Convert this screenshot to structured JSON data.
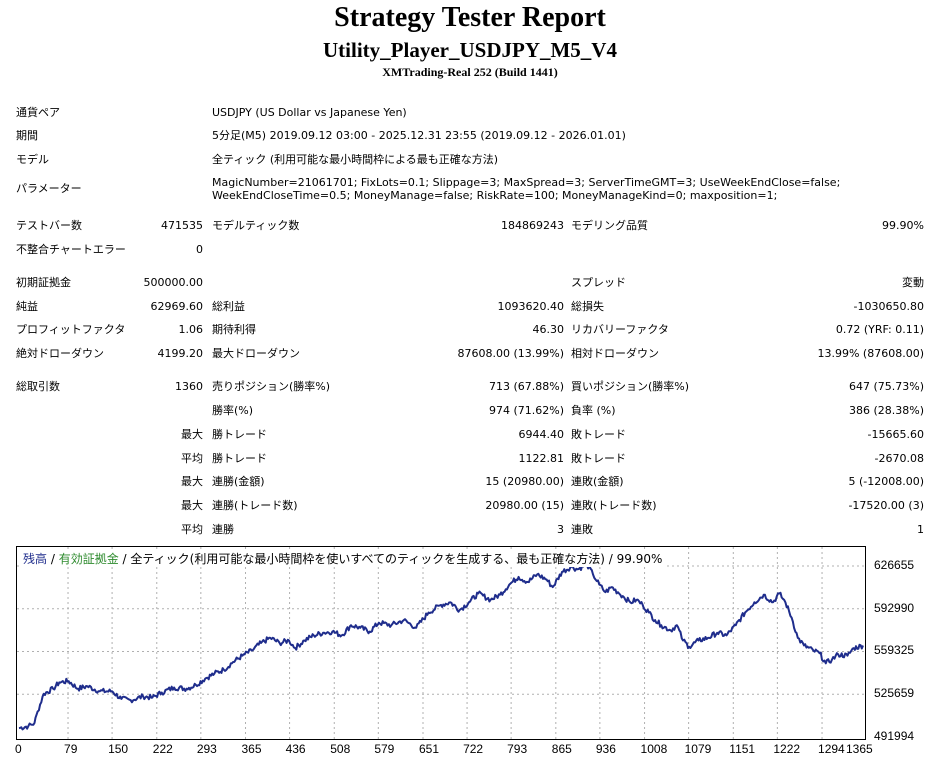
{
  "header": {
    "title": "Strategy Tester Report",
    "subtitle": "Utility_Player_USDJPY_M5_V4",
    "server": "XMTrading-Real 252 (Build 1441)"
  },
  "info": {
    "symbol": {
      "label": "通貨ペア",
      "value": "USDJPY (US Dollar vs Japanese Yen)"
    },
    "period": {
      "label": "期間",
      "value": "5分足(M5) 2019.09.12 03:00 - 2025.12.31 23:55 (2019.09.12 - 2026.01.01)"
    },
    "model": {
      "label": "モデル",
      "value": "全ティック (利用可能な最小時間枠による最も正確な方法)"
    },
    "parameters": {
      "label": "パラメーター",
      "line1": "MagicNumber=21061701; FixLots=0.1; Slippage=3; MaxSpread=3; ServerTimeGMT=3; UseWeekEndClose=false;",
      "line2": "WeekEndCloseTime=0.5; MoneyManage=false; RiskRate=100; MoneyManageKind=0; maxposition=1;"
    }
  },
  "stats": {
    "bars_label": "テストバー数",
    "bars": "471535",
    "ticks_label": "モデルティック数",
    "ticks": "184869243",
    "quality_label": "モデリング品質",
    "quality": "99.90%",
    "mismatch_label": "不整合チャートエラー",
    "mismatch": "0",
    "deposit_label": "初期証拠金",
    "deposit": "500000.00",
    "spread_label": "スプレッド",
    "spread": "変動",
    "net_label": "純益",
    "net": "62969.60",
    "gross_profit_label": "総利益",
    "gross_profit": "1093620.40",
    "gross_loss_label": "総損失",
    "gross_loss": "-1030650.80",
    "pf_label": "プロフィットファクタ",
    "pf": "1.06",
    "expected_label": "期待利得",
    "expected": "46.30",
    "recovery_label": "リカバリーファクタ",
    "recovery": "0.72 (YRF: 0.11)",
    "abs_dd_label": "絶対ドローダウン",
    "abs_dd": "4199.20",
    "max_dd_label": "最大ドローダウン",
    "max_dd": "87608.00 (13.99%)",
    "rel_dd_label": "相対ドローダウン",
    "rel_dd": "13.99% (87608.00)",
    "total_trades_label": "総取引数",
    "total_trades": "1360",
    "short_label": "売りポジション(勝率%)",
    "short": "713 (67.88%)",
    "long_label": "買いポジション(勝率%)",
    "long": "647 (75.73%)",
    "win_rate_label": "勝率(%)",
    "win_rate": "974 (71.62%)",
    "loss_rate_label": "負率 (%)",
    "loss_rate": "386 (28.38%)",
    "max_label": "最大",
    "avg_label": "平均",
    "win_trade_label": "勝トレード",
    "loss_trade_label": "敗トレード",
    "max_win": "6944.40",
    "max_loss": "-15665.60",
    "avg_win": "1122.81",
    "avg_loss": "-2670.08",
    "consec_win_amt_label": "連勝(金額)",
    "consec_win_amt": "15 (20980.00)",
    "consec_loss_amt_label": "連敗(金額)",
    "consec_loss_amt": "5 (-12008.00)",
    "consec_win_cnt_label": "連勝(トレード数)",
    "consec_win_cnt": "20980.00 (15)",
    "consec_loss_cnt_label": "連敗(トレード数)",
    "consec_loss_cnt": "-17520.00 (3)",
    "avg_consec_win_label": "連勝",
    "avg_consec_win": "3",
    "avg_consec_loss_label": "連敗",
    "avg_consec_loss": "1"
  },
  "legend": {
    "balance": "残高",
    "sep1": " / ",
    "equity": "有効証拠金",
    "sep2": " / ",
    "desc": "全ティック(利用可能な最小時間枠を使いすべてのティックを生成する、最も正確な方法) / 99.90%"
  },
  "colors": {
    "balance": "#1f2d8c",
    "equity": "#2e8b2e",
    "grid": "#b0b0b0"
  },
  "chart_data": {
    "type": "line",
    "title": "",
    "xlabel": "",
    "ylabel": "",
    "xlim": [
      0,
      1360
    ],
    "ylim": [
      491994,
      640000
    ],
    "x_ticks": [
      0,
      79,
      150,
      222,
      293,
      365,
      436,
      508,
      579,
      651,
      722,
      793,
      865,
      936,
      1008,
      1079,
      1151,
      1222,
      1294,
      1365
    ],
    "y_ticks": [
      626655,
      592990,
      559325,
      525659,
      491994
    ],
    "grid": true,
    "series": [
      {
        "name": "残高",
        "x": [
          0,
          15,
          25,
          30,
          40,
          55,
          65,
          80,
          95,
          110,
          130,
          150,
          165,
          180,
          200,
          215,
          230,
          250,
          270,
          285,
          300,
          315,
          330,
          345,
          360,
          375,
          390,
          405,
          420,
          435,
          445,
          460,
          475,
          490,
          505,
          520,
          535,
          550,
          565,
          580,
          600,
          620,
          640,
          660,
          680,
          695,
          710,
          725,
          740,
          760,
          775,
          790,
          805,
          820,
          835,
          850,
          860,
          875,
          890,
          900,
          915,
          925,
          935,
          945,
          955,
          965,
          975,
          985,
          995,
          1005,
          1015,
          1025,
          1035,
          1050,
          1060,
          1070,
          1080,
          1095,
          1110,
          1125,
          1140,
          1155,
          1170,
          1185,
          1200,
          1215,
          1225,
          1235,
          1245,
          1255,
          1265,
          1280,
          1290,
          1300,
          1310,
          1320,
          1335,
          1345,
          1360
        ],
        "y": [
          499000,
          500500,
          503000,
          512000,
          526000,
          530000,
          535000,
          536000,
          530000,
          532000,
          528000,
          528000,
          522000,
          521000,
          524000,
          523000,
          527000,
          531000,
          530000,
          533000,
          538000,
          542000,
          545000,
          551000,
          556000,
          560000,
          566000,
          570000,
          566000,
          568000,
          562000,
          568000,
          572000,
          574000,
          575000,
          572000,
          580000,
          578000,
          575000,
          582000,
          580000,
          584000,
          578000,
          590000,
          596000,
          598000,
          592000,
          598000,
          605000,
          600000,
          604000,
          612000,
          618000,
          614000,
          620000,
          616000,
          610000,
          622000,
          626000,
          624000,
          628000,
          620000,
          612000,
          606000,
          610000,
          606000,
          602000,
          598000,
          600000,
          596000,
          590000,
          584000,
          580000,
          576000,
          580000,
          568000,
          563000,
          568000,
          570000,
          574000,
          572000,
          580000,
          590000,
          598000,
          604000,
          598000,
          605000,
          598000,
          586000,
          570000,
          564000,
          560000,
          558000,
          550000,
          553000,
          557000,
          556000,
          562000,
          564000
        ]
      }
    ]
  }
}
